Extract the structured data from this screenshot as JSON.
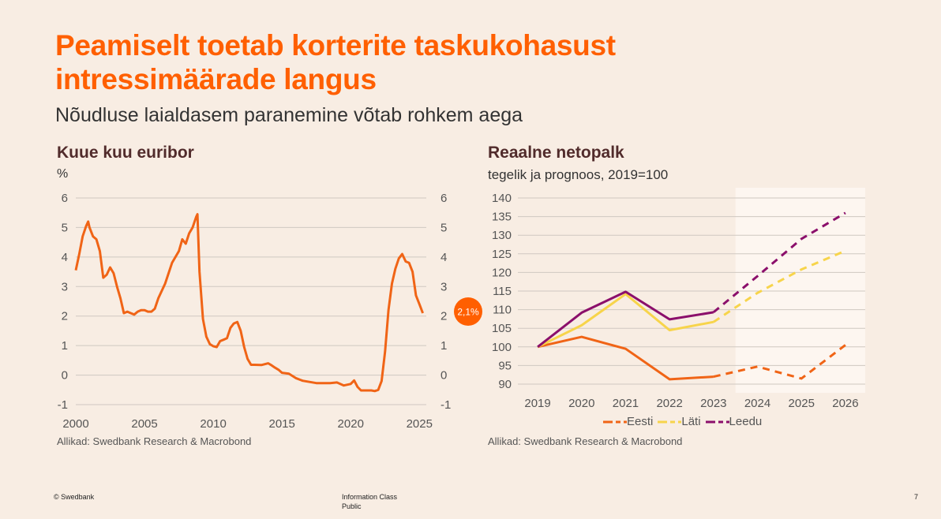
{
  "page": {
    "title": "Peamiselt toetab korterite taskukohasust intressimäärade langus",
    "subtitle": "Nõudluse laialdasem paranemine võtab rohkem aega"
  },
  "footer": {
    "copyright": "© Swedbank",
    "info_class": "Information Class",
    "info_value": "Public",
    "page_number": "7"
  },
  "colors": {
    "accent": "#ff5f00",
    "eesti": "#f06416",
    "lati": "#f7d44b",
    "leedu": "#8b0f6b",
    "forecast_bg": "#fdf6f0"
  },
  "chart_data": [
    {
      "type": "line",
      "title": "Kuue kuu euribor",
      "ylabel": "%",
      "ylim": [
        -1,
        6
      ],
      "xlim": [
        2000,
        2025.5
      ],
      "x_ticks": [
        2000,
        2005,
        2010,
        2015,
        2020,
        2025
      ],
      "y_ticks": [
        -1,
        0,
        1,
        2,
        3,
        4,
        5,
        6
      ],
      "grid": true,
      "last_value_label": "2,1%",
      "source": "Allikad: Swedbank Research & Macrobond",
      "series": [
        {
          "color": "#f06416",
          "points": [
            [
              2000.0,
              3.55
            ],
            [
              2000.25,
              4.1
            ],
            [
              2000.5,
              4.7
            ],
            [
              2000.75,
              5.05
            ],
            [
              2000.9,
              5.2
            ],
            [
              2001.0,
              5.0
            ],
            [
              2001.25,
              4.7
            ],
            [
              2001.5,
              4.6
            ],
            [
              2001.75,
              4.2
            ],
            [
              2002.0,
              3.3
            ],
            [
              2002.25,
              3.4
            ],
            [
              2002.5,
              3.65
            ],
            [
              2002.75,
              3.45
            ],
            [
              2003.0,
              3.0
            ],
            [
              2003.25,
              2.6
            ],
            [
              2003.5,
              2.1
            ],
            [
              2003.75,
              2.15
            ],
            [
              2004.0,
              2.1
            ],
            [
              2004.25,
              2.05
            ],
            [
              2004.5,
              2.15
            ],
            [
              2004.75,
              2.2
            ],
            [
              2005.0,
              2.2
            ],
            [
              2005.25,
              2.15
            ],
            [
              2005.5,
              2.15
            ],
            [
              2005.75,
              2.25
            ],
            [
              2006.0,
              2.6
            ],
            [
              2006.5,
              3.1
            ],
            [
              2007.0,
              3.8
            ],
            [
              2007.5,
              4.2
            ],
            [
              2007.75,
              4.6
            ],
            [
              2008.0,
              4.45
            ],
            [
              2008.25,
              4.8
            ],
            [
              2008.5,
              5.0
            ],
            [
              2008.75,
              5.35
            ],
            [
              2008.85,
              5.45
            ],
            [
              2009.0,
              3.5
            ],
            [
              2009.25,
              1.9
            ],
            [
              2009.5,
              1.3
            ],
            [
              2009.75,
              1.05
            ],
            [
              2010.0,
              0.98
            ],
            [
              2010.25,
              0.95
            ],
            [
              2010.5,
              1.15
            ],
            [
              2010.75,
              1.2
            ],
            [
              2011.0,
              1.25
            ],
            [
              2011.25,
              1.6
            ],
            [
              2011.5,
              1.75
            ],
            [
              2011.75,
              1.8
            ],
            [
              2012.0,
              1.5
            ],
            [
              2012.25,
              0.95
            ],
            [
              2012.5,
              0.55
            ],
            [
              2012.75,
              0.35
            ],
            [
              2013.0,
              0.35
            ],
            [
              2013.5,
              0.34
            ],
            [
              2014.0,
              0.4
            ],
            [
              2014.25,
              0.33
            ],
            [
              2014.5,
              0.25
            ],
            [
              2014.75,
              0.18
            ],
            [
              2015.0,
              0.08
            ],
            [
              2015.5,
              0.05
            ],
            [
              2016.0,
              -0.1
            ],
            [
              2016.5,
              -0.19
            ],
            [
              2017.0,
              -0.23
            ],
            [
              2017.5,
              -0.27
            ],
            [
              2018.0,
              -0.27
            ],
            [
              2018.5,
              -0.27
            ],
            [
              2019.0,
              -0.25
            ],
            [
              2019.5,
              -0.35
            ],
            [
              2020.0,
              -0.3
            ],
            [
              2020.25,
              -0.18
            ],
            [
              2020.5,
              -0.4
            ],
            [
              2020.75,
              -0.52
            ],
            [
              2021.0,
              -0.52
            ],
            [
              2021.5,
              -0.52
            ],
            [
              2021.75,
              -0.54
            ],
            [
              2022.0,
              -0.5
            ],
            [
              2022.25,
              -0.2
            ],
            [
              2022.5,
              0.8
            ],
            [
              2022.75,
              2.2
            ],
            [
              2023.0,
              3.1
            ],
            [
              2023.25,
              3.6
            ],
            [
              2023.5,
              3.95
            ],
            [
              2023.75,
              4.1
            ],
            [
              2024.0,
              3.85
            ],
            [
              2024.25,
              3.8
            ],
            [
              2024.5,
              3.5
            ],
            [
              2024.75,
              2.7
            ],
            [
              2025.0,
              2.4
            ],
            [
              2025.25,
              2.1
            ]
          ]
        }
      ]
    },
    {
      "type": "line",
      "title": "Reaalne netopalk",
      "subtitle": "tegelik ja prognoos, 2019=100",
      "ylim": [
        90,
        140
      ],
      "x_ticks": [
        2019,
        2020,
        2021,
        2022,
        2023,
        2024,
        2025,
        2026
      ],
      "y_ticks": [
        90,
        95,
        100,
        105,
        110,
        115,
        120,
        125,
        130,
        135,
        140
      ],
      "grid": true,
      "forecast_from": 2023.5,
      "actual_until": 2023,
      "legend_position": "bottom",
      "source": "Allikad: Swedbank Research & Macrobond",
      "series": [
        {
          "name": "Eesti",
          "color": "#f06416",
          "x": [
            2019,
            2020,
            2021,
            2022,
            2023,
            2024,
            2025,
            2026
          ],
          "values": [
            100,
            102.7,
            99.5,
            91.3,
            92.0,
            94.7,
            91.5,
            100.5
          ]
        },
        {
          "name": "Läti",
          "color": "#f7d44b",
          "x": [
            2019,
            2020,
            2021,
            2022,
            2023,
            2024,
            2025,
            2026
          ],
          "values": [
            100,
            105.8,
            114.2,
            104.5,
            106.7,
            114.5,
            120.8,
            125.8
          ]
        },
        {
          "name": "Leedu",
          "color": "#8b0f6b",
          "x": [
            2019,
            2020,
            2021,
            2022,
            2023,
            2024,
            2025,
            2026
          ],
          "values": [
            100,
            109.2,
            114.8,
            107.4,
            109.3,
            119.0,
            129.0,
            136.0
          ]
        }
      ]
    }
  ]
}
